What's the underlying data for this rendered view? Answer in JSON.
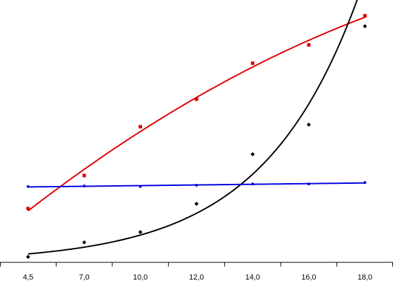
{
  "chart_data": {
    "type": "line",
    "categories": [
      "4,5",
      "7,0",
      "10,0",
      "12,0",
      "14,0",
      "16,0",
      "18,0"
    ],
    "ylim": [
      0,
      100
    ],
    "series": [
      {
        "color": "#e00000",
        "marker": "square",
        "trend": "poly2",
        "values": [
          20.5,
          33.1,
          51.7,
          62.2,
          75.9,
          82.9,
          94.0
        ]
      },
      {
        "color": "#000000",
        "marker": "diamond",
        "trend": "exp",
        "values": [
          2.1,
          7.6,
          11.5,
          22.3,
          41.2,
          52.5,
          90.0
        ]
      },
      {
        "color": "#0000e0",
        "marker": "dot",
        "trend": "linear",
        "values": [
          28.9,
          29.1,
          28.9,
          29.4,
          29.9,
          29.9,
          30.4
        ]
      }
    ]
  }
}
